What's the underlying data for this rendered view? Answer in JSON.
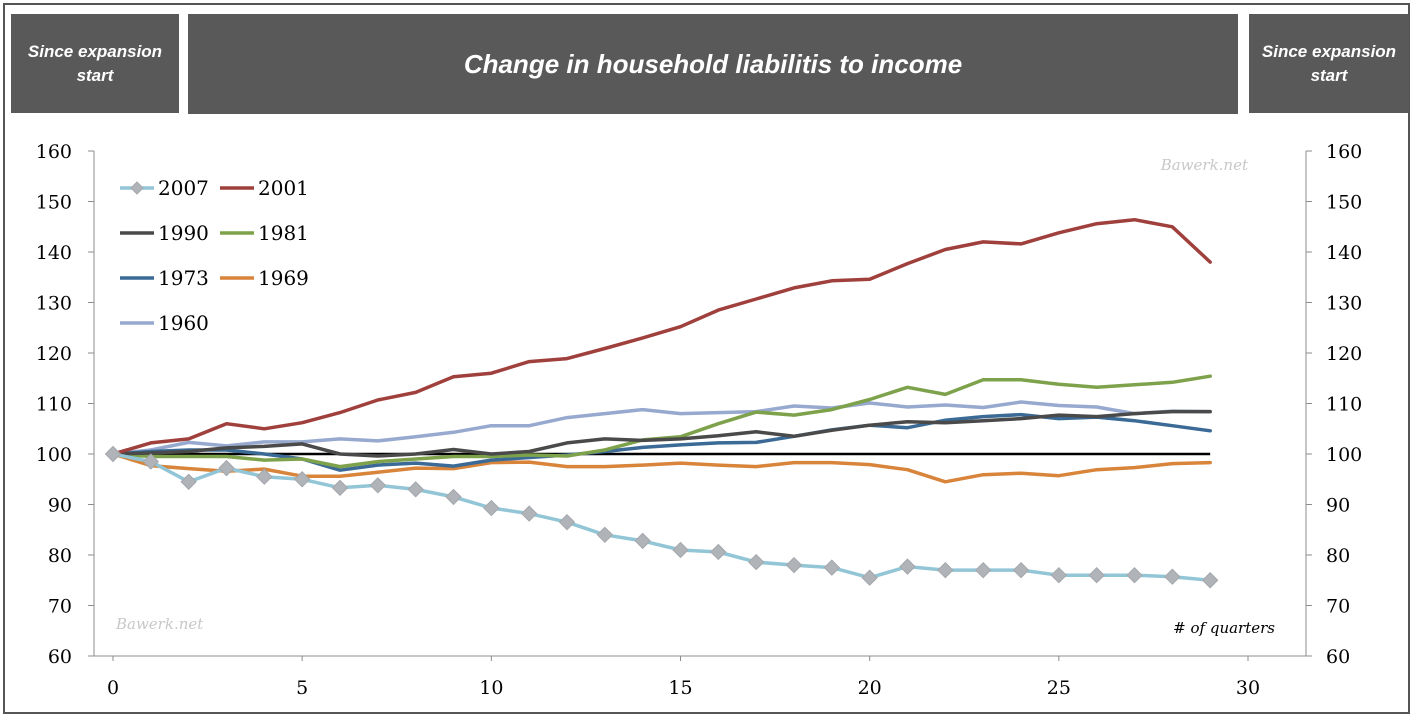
{
  "header": {
    "left_label": "Since expansion start",
    "title": "Change in household liabilitis to income",
    "right_label": "Since expansion start"
  },
  "chart_data": {
    "type": "line",
    "title": "Change in household liabilitis to income",
    "xlabel": "# of quarters",
    "ylabel": "",
    "xlim": [
      0,
      30
    ],
    "ylim": [
      60,
      160
    ],
    "x_ticks": [
      0,
      5,
      10,
      15,
      20,
      25,
      30
    ],
    "y_ticks": [
      60,
      70,
      80,
      90,
      100,
      110,
      120,
      130,
      140,
      150,
      160
    ],
    "secondary_y_axis": true,
    "grid": false,
    "legend_position": "top-left",
    "reference_line": 100,
    "watermarks": [
      "Bawerk.net",
      "Bawerk.net"
    ],
    "x": [
      0,
      1,
      2,
      3,
      4,
      5,
      6,
      7,
      8,
      9,
      10,
      11,
      12,
      13,
      14,
      15,
      16,
      17,
      18,
      19,
      20,
      21,
      22,
      23,
      24,
      25,
      26,
      27,
      28,
      29
    ],
    "series": [
      {
        "name": "2007",
        "color": "#92c5d6",
        "marker": "diamond",
        "values": [
          100,
          98.5,
          94.5,
          97.2,
          95.5,
          95.0,
          93.3,
          93.8,
          93.0,
          91.5,
          89.3,
          88.2,
          86.5,
          84.0,
          82.8,
          81.0,
          80.6,
          78.6,
          78.0,
          77.5,
          75.5,
          77.7,
          77.0,
          77.0,
          77.0,
          76.0,
          76.0,
          76.0,
          75.7,
          75.0
        ]
      },
      {
        "name": "2001",
        "color": "#a0403d",
        "marker": "none",
        "values": [
          100,
          102.2,
          103.0,
          106.0,
          105.0,
          106.2,
          108.2,
          110.7,
          112.2,
          115.3,
          116.0,
          118.3,
          118.9,
          120.9,
          123.0,
          125.2,
          128.5,
          130.7,
          132.9,
          134.3,
          134.6,
          137.7,
          140.5,
          142.0,
          141.6,
          143.8,
          145.6,
          146.4,
          145.0,
          138.0
        ]
      },
      {
        "name": "1990",
        "color": "#4a4a4a",
        "marker": "none",
        "values": [
          100,
          100.2,
          100.5,
          101.2,
          101.5,
          102.0,
          100.0,
          99.6,
          100.0,
          100.9,
          100.0,
          100.5,
          102.2,
          103.0,
          102.7,
          103.0,
          103.6,
          104.4,
          103.5,
          104.7,
          105.7,
          106.4,
          106.2,
          106.6,
          107.0,
          107.7,
          107.4,
          108.0,
          108.4,
          108.4
        ]
      },
      {
        "name": "1981",
        "color": "#7ea24b",
        "marker": "none",
        "values": [
          100,
          99.5,
          99.5,
          99.5,
          98.8,
          99.0,
          97.5,
          98.5,
          99.0,
          99.5,
          99.5,
          99.8,
          99.6,
          100.8,
          102.8,
          103.4,
          106.0,
          108.3,
          107.7,
          108.8,
          110.8,
          113.2,
          111.8,
          114.7,
          114.7,
          113.8,
          113.2,
          113.7,
          114.2,
          115.4
        ]
      },
      {
        "name": "1973",
        "color": "#3a6a95",
        "marker": "none",
        "values": [
          100,
          100.5,
          100.8,
          100.8,
          100.0,
          99.0,
          96.8,
          97.8,
          98.2,
          97.6,
          98.8,
          99.3,
          99.8,
          100.5,
          101.3,
          101.8,
          102.2,
          102.3,
          103.5,
          104.8,
          105.7,
          105.2,
          106.7,
          107.4,
          107.8,
          107.0,
          107.3,
          106.6,
          105.6,
          104.6
        ]
      },
      {
        "name": "1969",
        "color": "#d8843b",
        "marker": "none",
        "values": [
          100,
          97.7,
          97.1,
          96.6,
          97.0,
          95.6,
          95.6,
          96.4,
          97.2,
          97.1,
          98.3,
          98.4,
          97.5,
          97.5,
          97.8,
          98.2,
          97.8,
          97.5,
          98.3,
          98.3,
          97.9,
          96.9,
          94.5,
          95.9,
          96.2,
          95.7,
          96.9,
          97.3,
          98.1,
          98.3
        ]
      },
      {
        "name": "1960",
        "color": "#97a9cf",
        "marker": "none",
        "values": [
          100,
          100.8,
          102.3,
          101.6,
          102.4,
          102.4,
          103.0,
          102.6,
          103.4,
          104.3,
          105.6,
          105.6,
          107.2,
          108.0,
          108.8,
          108.0,
          108.2,
          108.4,
          109.5,
          109.1,
          110.1,
          109.3,
          109.7,
          109.2,
          110.3,
          109.6,
          109.3,
          108.0,
          108.5,
          108.4
        ]
      }
    ]
  }
}
